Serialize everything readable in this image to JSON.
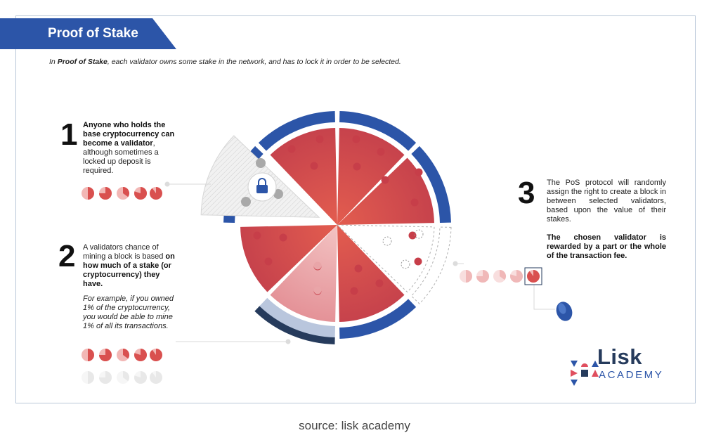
{
  "header": {
    "title": "Proof of Stake",
    "intro_prefix": "In ",
    "intro_bold": "Proof of Stake",
    "intro_rest": ", each validator owns some stake in the network, and has to lock it in order to be selected."
  },
  "steps": [
    {
      "number": "1",
      "bold_text": "Anyone who holds the base cryptocurrency can become a validator",
      "text": ", although sometimes a locked up deposit is required."
    },
    {
      "number": "2",
      "text": "A validators chance of mining a block is based ",
      "bold_text": "on how much of a stake (or cryptocurrency) they have.",
      "note": "For example, if you owned 1% of the cryptocurrency, you would be able to mine 1% of all its transactions."
    },
    {
      "number": "3",
      "text": "The PoS protocol will randomly assign the right to create a block in between selected validators, based upon the value of their stakes.",
      "bold_text": "The chosen validator is rewarded by a part or the whole of the transaction fee."
    }
  ],
  "icons": {
    "lock": "lock-icon",
    "coin": "coin-icon",
    "logo": "lisk-academy-logo"
  },
  "colors": {
    "brand_blue": "#2c55a8",
    "slice_red": "#d9504f",
    "dark_navy": "#263b5c"
  },
  "logo": {
    "word": "Lisk",
    "sub": "ACADEMY"
  },
  "caption": "source: lisk academy"
}
